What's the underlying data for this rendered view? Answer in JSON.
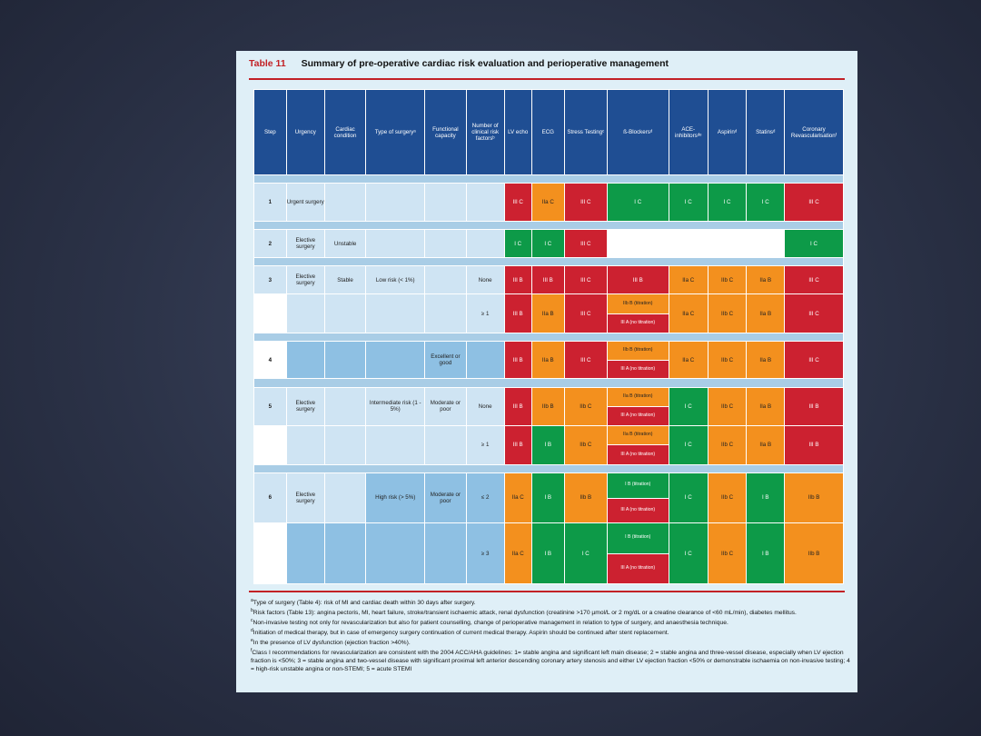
{
  "table": {
    "label": "Table 11",
    "title": "Summary of pre-operative cardiac risk evaluation and perioperative management",
    "headers": [
      "Step",
      "Urgency",
      "Cardiac condition",
      "Type of surgeryᵃ",
      "Functional capacity",
      "Number of clinical risk factorsᵇ",
      "LV echo",
      "ECG",
      "Stress Testingᶜ",
      "ß-Blockersᵈ",
      "ACE-inhibitorsᵈᵉ",
      "Aspirinᵈ",
      "Statinsᵈ",
      "Coronary Revascularisationᶠ"
    ],
    "steps": {
      "s1": {
        "step": "1",
        "urgency": "Urgent surgery"
      },
      "s2": {
        "step": "2",
        "urgency": "Elective surgery",
        "cardiac": "Unstable"
      },
      "s3": {
        "step": "3",
        "urgency": "Elective surgery",
        "cardiac": "Stable",
        "surgery": "Low risk (< 1%)",
        "n_a": "None",
        "n_b": "≥ 1"
      },
      "s4": {
        "step": "4",
        "functional": "Excellent or good"
      },
      "s5": {
        "step": "5",
        "urgency": "Elective surgery",
        "surgery": "Intermediate risk (1 - 5%)",
        "functional": "Moderate or poor",
        "n_a": "None",
        "n_b": "≥ 1"
      },
      "s6": {
        "step": "6",
        "urgency": "Elective surgery",
        "surgery": "High risk (> 5%)",
        "functional": "Moderate or poor",
        "n_a": "≤ 2",
        "n_b": "≥ 3"
      }
    },
    "cells": {
      "r1": [
        "III C",
        "IIa C",
        "III C",
        "I C",
        "I C",
        "I C",
        "I C",
        "III C"
      ],
      "r2": [
        "I C",
        "I C",
        "III C",
        "I C"
      ],
      "r3a": [
        "III B",
        "III B",
        "III C",
        "III B",
        "IIa C",
        "IIb C",
        "IIa B",
        "III C"
      ],
      "r3b": [
        "III B",
        "IIa B",
        "III C",
        "IIb B (titration)",
        "III A (no titration)",
        "IIa C",
        "IIb C",
        "IIa B",
        "III C"
      ],
      "r4": [
        "III B",
        "IIa B",
        "III C",
        "IIb B (titration)",
        "III A (no titration)",
        "IIa C",
        "IIb C",
        "IIa B",
        "III C"
      ],
      "r5a": [
        "III B",
        "IIb B",
        "IIb C",
        "IIa B (titration)",
        "III A (no titration)",
        "I C",
        "IIb C",
        "IIa B",
        "III B"
      ],
      "r5b": [
        "III B",
        "I B",
        "IIb C",
        "IIa B (titration)",
        "III A (no titration)",
        "I C",
        "IIb C",
        "IIa B",
        "III B"
      ],
      "r6a": [
        "IIa C",
        "I B",
        "IIb B",
        "I B (titration)",
        "III A (no titration)",
        "I C",
        "IIb C",
        "I B",
        "IIb B"
      ],
      "r6b": [
        "IIa C",
        "I B",
        "I C",
        "I B (titration)",
        "III A (no titration)",
        "I C",
        "IIb C",
        "I B",
        "IIb B"
      ]
    }
  },
  "footnotes": {
    "a": "Type of surgery (Table 4): risk of MI and cardiac death within 30 days after surgery.",
    "b": "Risk factors (Table 13): angina pectoris, MI, heart failure, stroke/transient ischaemic attack, renal dysfunction (creatinine >170 µmol/L or 2 mg/dL or a creatine clearance of <60 mL/min), diabetes mellitus.",
    "c": "Non-invasive testing not only for revascularization but also for patient counselling, change of perioperative management in relation to type of surgery, and anaesthesia technique.",
    "d": "Initiation of medical therapy, but in case of emergency surgery continuation of current medical therapy. Aspirin should be continued after stent replacement.",
    "e": "In the presence of LV dysfunction (ejection fraction >40%).",
    "f": "Class I recommendations for revascularization are consistent with the 2004 ACC/AHA guidelines: 1= stable angina and significant left main disease; 2 = stable angina and three-vessel disease, especially when LV ejection fraction is <50%; 3 = stable angina and two-vessel disease with significant proximal left anterior descending coronary artery stenosis and either LV ejection fraction <50% or demonstrable ischaemia on non-invasive testing; 4 = high-risk unstable angina or non-STEMI; 5 = acute STEMI"
  }
}
